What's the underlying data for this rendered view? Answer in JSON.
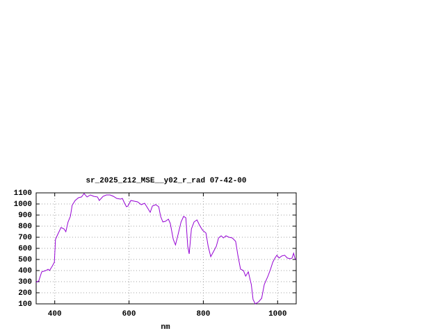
{
  "chart_data": {
    "type": "line",
    "title": "sr_2025_212_MSE__y02_r_rad 07-42-00",
    "x_label": "nm",
    "x": [
      350,
      357,
      365,
      376,
      382,
      386,
      393,
      399,
      402,
      408,
      417,
      425,
      430,
      436,
      442,
      447,
      455,
      464,
      472,
      479,
      487,
      496,
      505,
      515,
      520,
      530,
      539,
      549,
      558,
      567,
      577,
      582,
      588,
      593,
      597,
      605,
      614,
      623,
      633,
      642,
      650,
      657,
      663,
      672,
      680,
      685,
      691,
      698,
      706,
      711,
      719,
      725,
      732,
      740,
      747,
      753,
      758,
      762,
      768,
      775,
      783,
      790,
      798,
      807,
      813,
      820,
      828,
      835,
      841,
      848,
      854,
      861,
      869,
      878,
      887,
      893,
      900,
      908,
      914,
      921,
      929,
      934,
      940,
      949,
      957,
      964,
      974,
      981,
      987,
      993,
      998,
      1004,
      1011,
      1019,
      1026,
      1034,
      1039,
      1043,
      1047,
      1050
    ],
    "series": [
      {
        "color": "#9400d3",
        "values": [
          294,
          306,
          388,
          400,
          412,
          400,
          438,
          475,
          681,
          725,
          788,
          775,
          750,
          838,
          888,
          988,
          1031,
          1056,
          1063,
          1094,
          1063,
          1081,
          1069,
          1063,
          1031,
          1069,
          1081,
          1081,
          1069,
          1050,
          1044,
          1050,
          1006,
          975,
          981,
          1031,
          1025,
          1019,
          994,
          1006,
          963,
          925,
          981,
          994,
          975,
          888,
          838,
          844,
          863,
          825,
          681,
          631,
          725,
          838,
          888,
          875,
          619,
          550,
          775,
          838,
          856,
          806,
          763,
          738,
          619,
          525,
          575,
          619,
          694,
          713,
          694,
          713,
          700,
          694,
          663,
          538,
          413,
          400,
          350,
          388,
          275,
          138,
          100,
          119,
          150,
          275,
          350,
          413,
          475,
          513,
          538,
          513,
          531,
          538,
          513,
          506,
          513,
          556,
          506,
          500
        ]
      }
    ],
    "xlim": [
      350,
      1050
    ],
    "ylim": [
      100,
      1100
    ],
    "xticks": [
      400,
      600,
      800,
      1000
    ],
    "yticks": [
      100,
      200,
      300,
      400,
      500,
      600,
      700,
      800,
      900,
      1000,
      1100
    ],
    "grid": true
  }
}
